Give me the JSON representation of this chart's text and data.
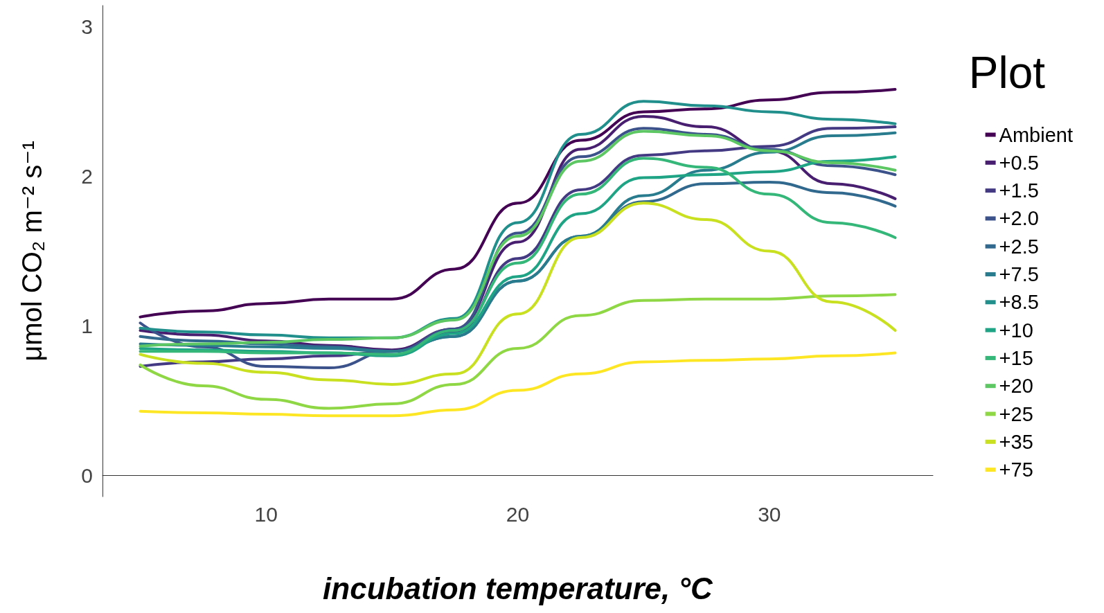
{
  "chart_data": {
    "type": "line",
    "xlabel": "incubation temperature, °C",
    "ylabel": "μmol CO₂ m⁻² s⁻¹",
    "legend_title": "Plot",
    "legend": "right",
    "grid": false,
    "marker": "none",
    "line_style": "solid",
    "x": [
      5,
      7.5,
      10,
      12.5,
      15,
      17.5,
      20,
      22.5,
      25,
      27.5,
      30,
      32.5,
      35
    ],
    "xlim": [
      3.5,
      36.5
    ],
    "xticks": [
      10,
      20,
      30
    ],
    "ylim": [
      -0.14,
      3.14
    ],
    "yticks": [
      0,
      1,
      2,
      3
    ],
    "series": [
      {
        "name": "Ambient",
        "color": "#440154",
        "values": [
          1.06,
          1.1,
          1.15,
          1.18,
          1.18,
          1.38,
          1.82,
          2.24,
          2.43,
          2.45,
          2.51,
          2.56,
          2.58
        ]
      },
      {
        "name": "+0.5",
        "color": "#481f70",
        "values": [
          0.97,
          0.94,
          0.9,
          0.87,
          0.84,
          0.98,
          1.56,
          2.18,
          2.4,
          2.33,
          2.17,
          1.95,
          1.85
        ]
      },
      {
        "name": "+1.5",
        "color": "#443a83",
        "values": [
          0.73,
          0.76,
          0.78,
          0.8,
          0.83,
          0.96,
          1.45,
          1.91,
          2.14,
          2.17,
          2.2,
          2.32,
          2.33
        ]
      },
      {
        "name": "+2.0",
        "color": "#3b528b",
        "values": [
          1.02,
          0.86,
          0.73,
          0.72,
          0.83,
          0.98,
          1.62,
          2.13,
          2.32,
          2.28,
          2.18,
          2.07,
          2.01
        ]
      },
      {
        "name": "+2.5",
        "color": "#31688e",
        "values": [
          0.93,
          0.9,
          0.88,
          0.86,
          0.83,
          0.93,
          1.3,
          1.6,
          1.83,
          1.95,
          1.96,
          1.89,
          1.8
        ]
      },
      {
        "name": "+7.5",
        "color": "#287c8e",
        "values": [
          0.88,
          0.87,
          0.86,
          0.85,
          0.83,
          0.93,
          1.3,
          1.6,
          1.87,
          2.04,
          2.16,
          2.27,
          2.29
        ]
      },
      {
        "name": "+8.5",
        "color": "#21908c",
        "values": [
          0.985,
          0.96,
          0.94,
          0.92,
          0.92,
          1.05,
          1.69,
          2.28,
          2.5,
          2.47,
          2.43,
          2.38,
          2.35
        ]
      },
      {
        "name": "+10",
        "color": "#20a486",
        "values": [
          0.85,
          0.84,
          0.83,
          0.82,
          0.8,
          0.95,
          1.33,
          1.75,
          1.99,
          2.01,
          2.03,
          2.1,
          2.13
        ]
      },
      {
        "name": "+15",
        "color": "#35b779",
        "values": [
          0.83,
          0.83,
          0.82,
          0.82,
          0.81,
          0.97,
          1.42,
          1.88,
          2.12,
          2.06,
          1.88,
          1.69,
          1.59
        ]
      },
      {
        "name": "+20",
        "color": "#5dc863",
        "values": [
          0.865,
          0.88,
          0.89,
          0.91,
          0.92,
          1.04,
          1.6,
          2.1,
          2.3,
          2.27,
          2.17,
          2.09,
          2.04
        ]
      },
      {
        "name": "+25",
        "color": "#8fd744",
        "values": [
          0.74,
          0.6,
          0.51,
          0.45,
          0.48,
          0.61,
          0.85,
          1.07,
          1.17,
          1.18,
          1.18,
          1.2,
          1.21
        ]
      },
      {
        "name": "+35",
        "color": "#c8e020",
        "values": [
          0.81,
          0.75,
          0.69,
          0.64,
          0.61,
          0.68,
          1.08,
          1.59,
          1.82,
          1.71,
          1.5,
          1.16,
          0.97
        ]
      },
      {
        "name": "+75",
        "color": "#fde725",
        "values": [
          0.43,
          0.42,
          0.41,
          0.4,
          0.4,
          0.44,
          0.57,
          0.68,
          0.76,
          0.77,
          0.78,
          0.8,
          0.82
        ]
      }
    ]
  }
}
